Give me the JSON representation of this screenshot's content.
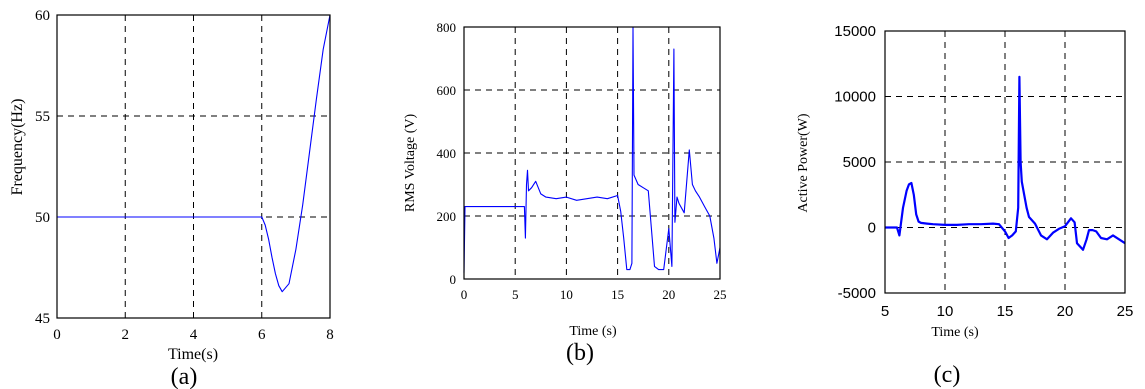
{
  "chart_data": [
    {
      "type": "line",
      "panel_label": "(a)",
      "xlabel": "Time(s)",
      "ylabel": "Frequency(Hz)",
      "xlim": [
        0,
        8
      ],
      "ylim": [
        45,
        60
      ],
      "x_ticks": [
        "0",
        "2",
        "4",
        "6",
        "8"
      ],
      "y_ticks": [
        "45",
        "50",
        "55",
        "60"
      ],
      "grid": true,
      "color": "#0000ff",
      "series": [
        {
          "x": [
            0,
            6.0,
            6.1,
            6.2,
            6.3,
            6.4,
            6.5,
            6.6,
            6.7,
            6.8,
            7.0,
            7.2,
            7.4,
            7.6,
            7.8,
            8.0
          ],
          "y": [
            50,
            50,
            49.6,
            48.9,
            48.0,
            47.2,
            46.6,
            46.3,
            46.5,
            46.7,
            48.4,
            50.6,
            53.2,
            55.8,
            58.3,
            60.0
          ]
        }
      ]
    },
    {
      "type": "line",
      "panel_label": "(b)",
      "xlabel": "Time (s)",
      "ylabel": "RMS Voltage (V)",
      "xlim": [
        0,
        25
      ],
      "ylim": [
        0,
        800
      ],
      "x_ticks": [
        "0",
        "5",
        "10",
        "15",
        "20",
        "25"
      ],
      "y_ticks": [
        "0",
        "200",
        "400",
        "600",
        "800"
      ],
      "grid": true,
      "color": "#0000ff",
      "series": [
        {
          "x": [
            0,
            0.1,
            5.9,
            6.0,
            6.1,
            6.2,
            6.3,
            6.6,
            7.0,
            7.5,
            8.0,
            9.0,
            10.0,
            11.0,
            12.0,
            13.0,
            14.0,
            15.0,
            15.3,
            15.6,
            15.9,
            16.2,
            16.4,
            16.5,
            16.6,
            17.0,
            17.5,
            18.0,
            18.3,
            18.6,
            19.0,
            19.5,
            20.0,
            20.3,
            20.5,
            20.6,
            20.8,
            21.0,
            21.5,
            22.0,
            22.3,
            22.6,
            23.0,
            23.5,
            24.0,
            24.4,
            24.7,
            25.0
          ],
          "y": [
            20,
            230,
            230,
            130,
            300,
            345,
            280,
            290,
            310,
            270,
            260,
            255,
            260,
            250,
            255,
            260,
            255,
            265,
            215,
            130,
            30,
            30,
            50,
            800,
            330,
            300,
            290,
            280,
            160,
            40,
            30,
            30,
            160,
            40,
            730,
            180,
            260,
            240,
            210,
            410,
            300,
            280,
            260,
            230,
            200,
            130,
            50,
            100
          ]
        }
      ]
    },
    {
      "type": "line",
      "panel_label": "(c)",
      "xlabel": "Time (s)",
      "ylabel": "Active Power(W)",
      "xlim": [
        5,
        25
      ],
      "ylim": [
        -5000,
        15000
      ],
      "x_ticks": [
        "5",
        "10",
        "15",
        "20",
        "25"
      ],
      "y_ticks": [
        "-5000",
        "0",
        "5000",
        "10000",
        "15000"
      ],
      "grid": true,
      "color": "#0000ff",
      "series": [
        {
          "x": [
            5.0,
            6.0,
            6.2,
            6.5,
            6.8,
            7.0,
            7.2,
            7.4,
            7.6,
            7.8,
            8.0,
            8.5,
            9.0,
            10.0,
            11.0,
            12.0,
            13.0,
            14.0,
            14.5,
            15.0,
            15.3,
            15.6,
            15.9,
            16.1,
            16.2,
            16.3,
            16.4,
            16.6,
            16.8,
            17.0,
            17.5,
            18.0,
            18.5,
            19.0,
            19.5,
            20.0,
            20.5,
            20.8,
            21.0,
            21.5,
            21.8,
            22.0,
            22.3,
            22.6,
            23.0,
            23.5,
            24.0,
            24.5,
            25.0
          ],
          "y": [
            0,
            0,
            -600,
            1500,
            2800,
            3300,
            3400,
            2500,
            1000,
            450,
            350,
            300,
            250,
            200,
            200,
            250,
            250,
            300,
            250,
            -300,
            -800,
            -600,
            -300,
            1500,
            11500,
            5000,
            3500,
            2500,
            1500,
            800,
            300,
            -600,
            -900,
            -400,
            -100,
            100,
            700,
            400,
            -1200,
            -1700,
            -900,
            -200,
            -200,
            -300,
            -800,
            -900,
            -600,
            -900,
            -1200
          ]
        }
      ]
    }
  ]
}
